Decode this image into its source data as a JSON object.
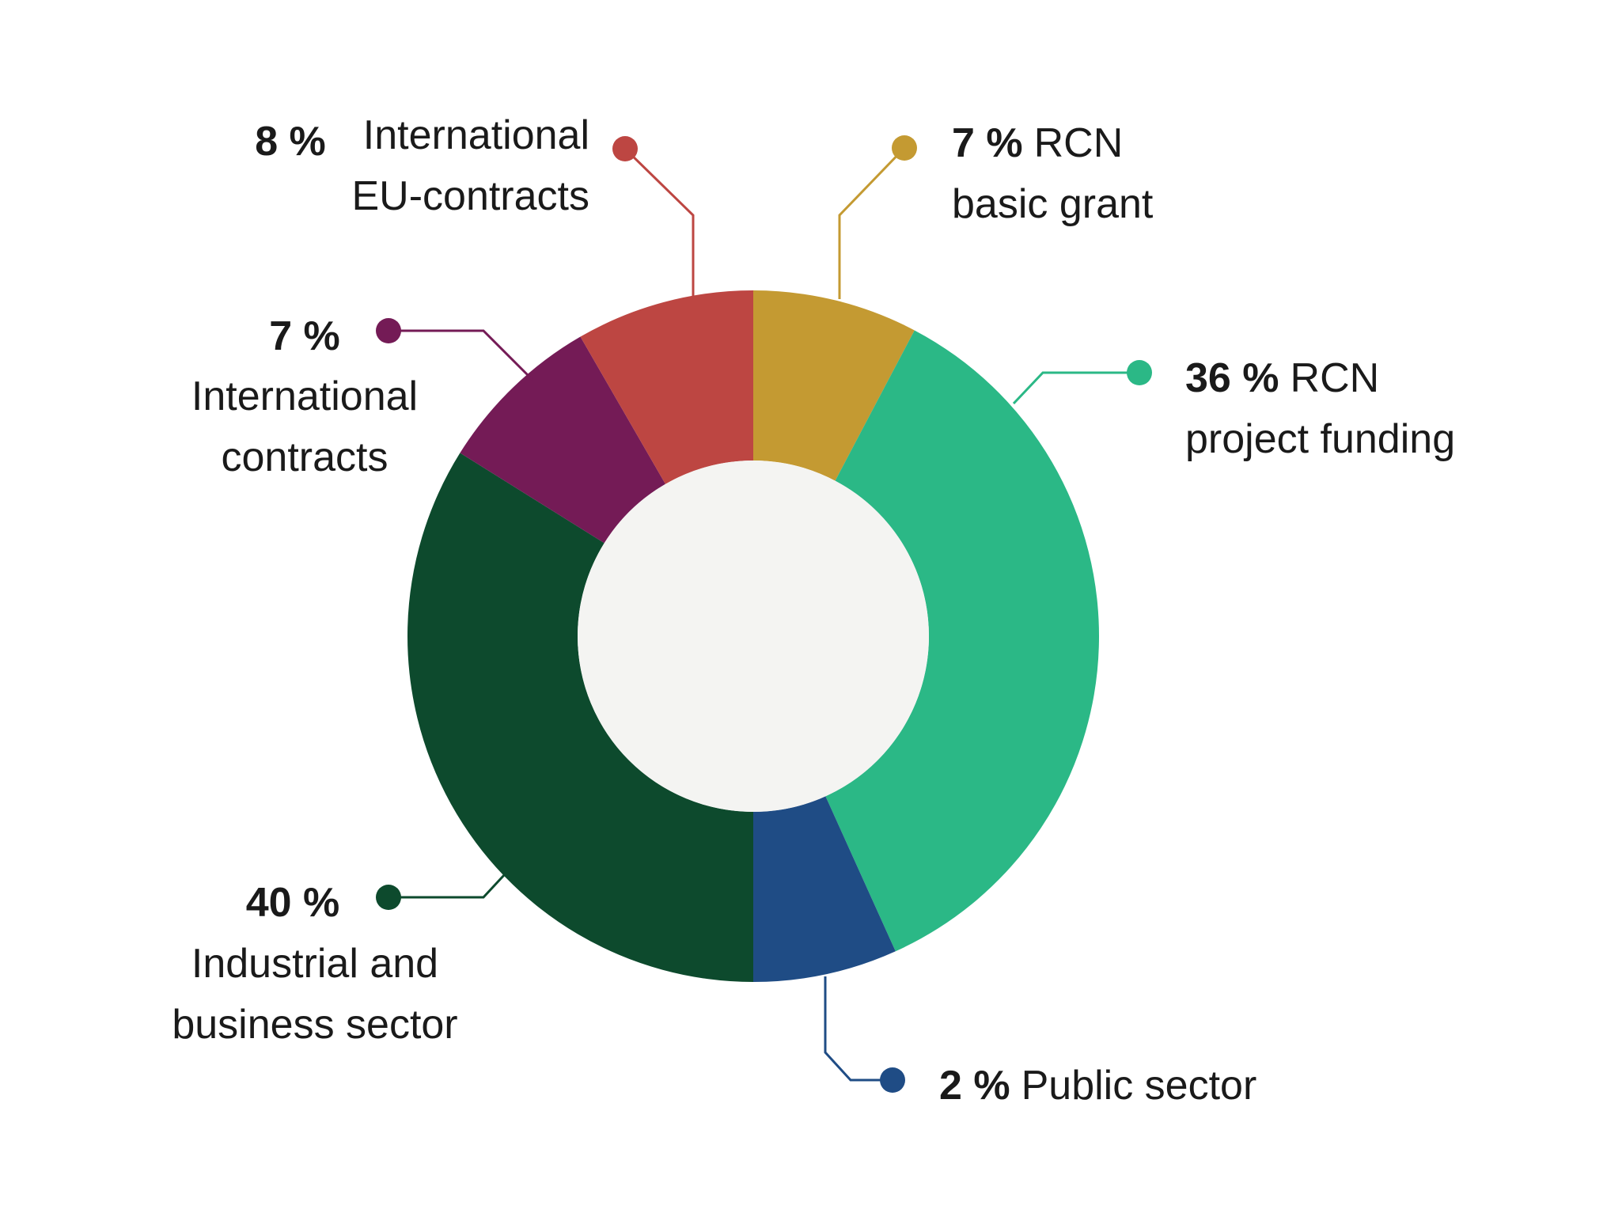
{
  "chart_data": {
    "type": "pie",
    "title": "",
    "slices": [
      {
        "key": "rcn_basic",
        "percent_label": "7 %",
        "label_lines": [
          "RCN",
          "basic grant"
        ],
        "value": 7,
        "color": "#C49A32"
      },
      {
        "key": "rcn_project",
        "percent_label": "36 %",
        "label_lines": [
          "RCN",
          "project funding"
        ],
        "value": 36,
        "color": "#2BB886"
      },
      {
        "key": "public",
        "percent_label": "2 %",
        "label_lines": [
          "Public sector"
        ],
        "value": 2,
        "color": "#1F4C85"
      },
      {
        "key": "industrial",
        "percent_label": "40 %",
        "label_lines": [
          "Industrial and",
          "business sector"
        ],
        "value": 40,
        "color": "#0D4A2D"
      },
      {
        "key": "international",
        "percent_label": "7 %",
        "label_lines": [
          "International",
          "contracts"
        ],
        "value": 7,
        "color": "#741B56"
      },
      {
        "key": "eu",
        "percent_label": "8 %",
        "label_lines": [
          "International",
          "EU-contracts"
        ],
        "value": 8,
        "color": "#BD4642"
      }
    ],
    "hole_color": "#F4F4F2"
  }
}
